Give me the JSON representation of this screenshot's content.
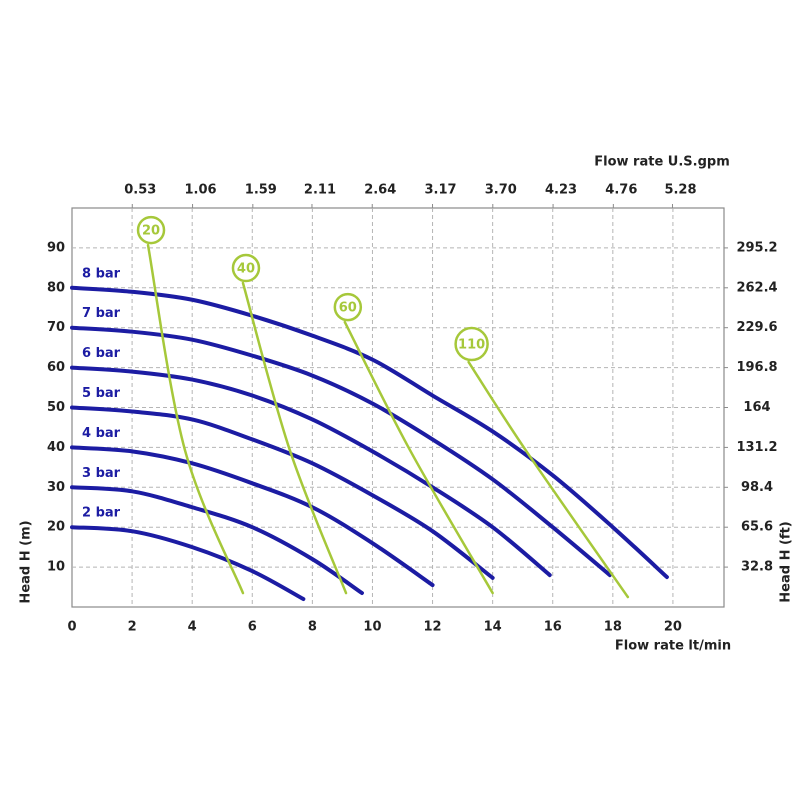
{
  "chart_data": {
    "type": "line",
    "xlabel": "Flow rate  lt/min",
    "x2label": "Flow rate U.S.gpm",
    "ylabel": "Head H (m)",
    "y2label": "Head H (ft)",
    "xlim": [
      0,
      21.7
    ],
    "xticks": [
      0,
      2,
      4,
      6,
      8,
      10,
      12,
      14,
      16,
      18,
      20
    ],
    "x2lim": [
      0,
      5.733
    ],
    "x2ticks": [
      0.53,
      1.06,
      1.59,
      2.11,
      2.64,
      3.17,
      {
        "value": 3.7,
        "label": "3.70"
      },
      4.23,
      4.76,
      5.28
    ],
    "ylim": [
      0,
      100
    ],
    "yticks": [
      10,
      20,
      30,
      40,
      50,
      60,
      70,
      80,
      90
    ],
    "y2lim": [
      0,
      328
    ],
    "y2ticks": [
      32.8,
      65.6,
      98.4,
      131.2,
      164,
      196.8,
      229.6,
      262.4,
      295.2
    ],
    "grid": true,
    "series": [
      {
        "name": "8 bar",
        "color": "#1c1ca3",
        "label_style": "plain",
        "x": [
          0,
          2,
          4,
          6,
          8,
          10,
          12,
          14,
          16,
          18,
          19.8
        ],
        "values": [
          80,
          79,
          77,
          73,
          68,
          62,
          53,
          44,
          33,
          20,
          7.5
        ]
      },
      {
        "name": "7 bar",
        "color": "#1c1ca3",
        "label_style": "plain",
        "x": [
          0,
          2,
          4,
          6,
          8,
          10,
          12,
          14,
          16,
          17.9
        ],
        "values": [
          70,
          69,
          67,
          63,
          58,
          51,
          42,
          32,
          20,
          8
        ]
      },
      {
        "name": "6 bar",
        "color": "#1c1ca3",
        "label_style": "plain",
        "x": [
          0,
          2,
          4,
          6,
          8,
          10,
          12,
          14,
          15.9
        ],
        "values": [
          60,
          59,
          57,
          53,
          47,
          39,
          30,
          20,
          8
        ]
      },
      {
        "name": "5 bar",
        "color": "#1c1ca3",
        "label_style": "plain",
        "x": [
          0,
          2,
          4,
          6,
          8,
          10,
          12,
          14
        ],
        "values": [
          50,
          49,
          47,
          42,
          36,
          28,
          19,
          7.3
        ]
      },
      {
        "name": "4 bar",
        "color": "#1c1ca3",
        "label_style": "plain",
        "x": [
          0,
          2,
          4,
          6,
          8,
          10,
          12
        ],
        "values": [
          40,
          39,
          36,
          31,
          25,
          16,
          5.5
        ]
      },
      {
        "name": "3 bar",
        "color": "#1c1ca3",
        "label_style": "plain",
        "x": [
          0,
          2,
          4,
          6,
          8,
          9.65
        ],
        "values": [
          30,
          29,
          25,
          20,
          12,
          3.5
        ]
      },
      {
        "name": "2 bar",
        "color": "#1c1ca3",
        "label_style": "plain",
        "x": [
          0,
          2,
          4,
          6,
          7.7
        ],
        "values": [
          20,
          19,
          15,
          9,
          2
        ]
      },
      {
        "name": "20",
        "color": "#a6c83a",
        "label_style": "circle",
        "x": [
          2.53,
          3.76,
          5.69
        ],
        "values": [
          90.7,
          39.3,
          3.5
        ]
      },
      {
        "name": "40",
        "color": "#a6c83a",
        "label_style": "circle",
        "x": [
          5.69,
          7.25,
          9.12
        ],
        "values": [
          81.2,
          39.3,
          3.5
        ]
      },
      {
        "name": "60",
        "color": "#a6c83a",
        "label_style": "circle",
        "x": [
          9.08,
          11.25,
          14.0
        ],
        "values": [
          71.4,
          39.3,
          3.5
        ]
      },
      {
        "name": "110",
        "color": "#a6c83a",
        "label_style": "circle",
        "x": [
          13.2,
          15.1,
          18.5
        ],
        "values": [
          61.4,
          39.3,
          2.5
        ]
      }
    ]
  }
}
